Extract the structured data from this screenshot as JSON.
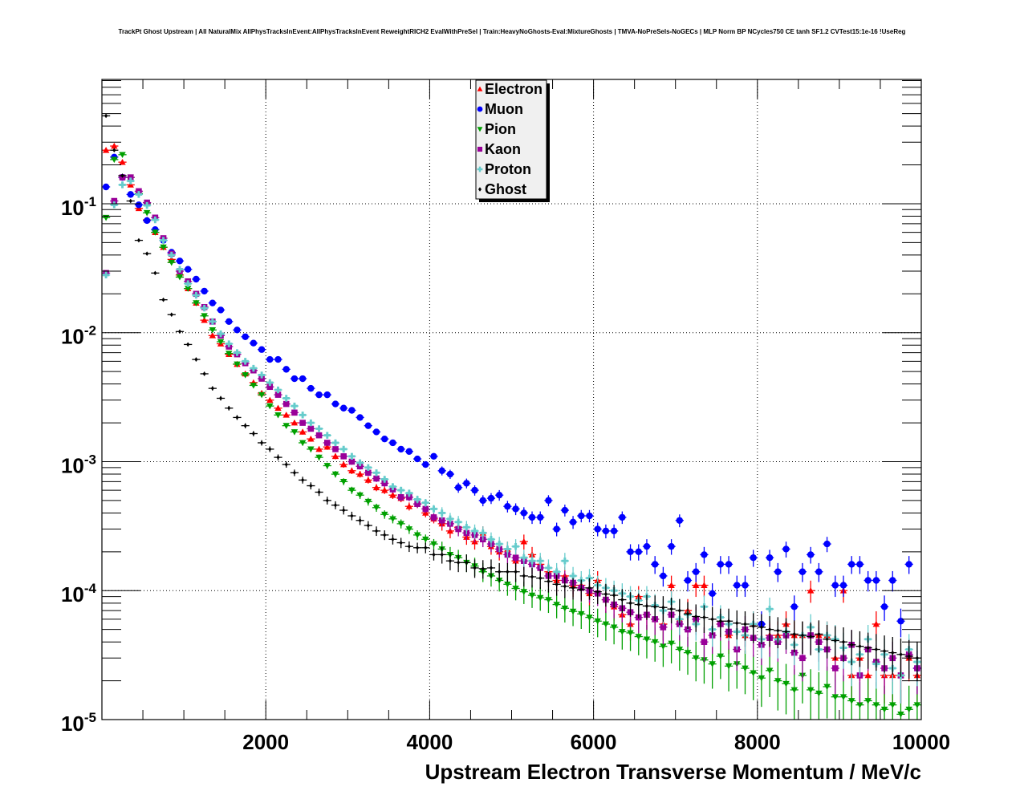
{
  "chart_data": {
    "type": "scatter",
    "title": "TrackPt Ghost Upstream | All NaturalMix AllPhysTracksInEvent:AllPhysTracksInEvent ReweightRICH2 EvalWithPreSel | Train:HeavyNoGhosts-Eval:MixtureGhosts | TMVA-NoPreSels-NoGECs | MLP Norm BP NCycles750 CE tanh SF1.2 CVTest15:1e-16 !UseReg",
    "xlabel": "Upstream Electron Transverse Momentum / MeV/c",
    "ylabel": "",
    "xlim": [
      0,
      10000
    ],
    "ylim": [
      1e-05,
      0.92
    ],
    "yscale": "log",
    "grid": true,
    "legend_position": "top-center",
    "x_ticks": [
      {
        "value": 2000,
        "label": "2000"
      },
      {
        "value": 4000,
        "label": "4000"
      },
      {
        "value": 6000,
        "label": "6000"
      },
      {
        "value": 8000,
        "label": "8000"
      },
      {
        "value": 10000,
        "label": "10000"
      }
    ],
    "y_ticks": [
      {
        "value": 0.1,
        "base": "10",
        "exp": "-1"
      },
      {
        "value": 0.01,
        "base": "10",
        "exp": "-2"
      },
      {
        "value": 0.001,
        "base": "10",
        "exp": "-3"
      },
      {
        "value": 0.0001,
        "base": "10",
        "exp": "-4"
      },
      {
        "value": 1e-05,
        "base": "10",
        "exp": "-5"
      }
    ],
    "bin_width": 100,
    "series": [
      {
        "name": "Electron",
        "color": "#ff0000",
        "marker": "triangle-up",
        "values": [
          0.26,
          0.28,
          0.21,
          0.14,
          0.092,
          0.075,
          0.06,
          0.046,
          0.037,
          0.028,
          0.022,
          0.017,
          0.0125,
          0.0095,
          0.0082,
          0.0068,
          0.0057,
          0.0048,
          0.0041,
          0.0034,
          0.003,
          0.0026,
          0.0023,
          0.002,
          0.0017,
          0.0015,
          0.00125,
          0.0013,
          0.0011,
          0.00095,
          0.00085,
          0.0008,
          0.00072,
          0.00063,
          0.0006,
          0.00055,
          0.00052,
          0.00045,
          0.00047,
          0.0004,
          0.00036,
          0.00033,
          0.00029,
          0.00031,
          0.00026,
          0.00024,
          0.00028,
          0.00022,
          0.0002,
          0.00021,
          0.00017,
          0.00024,
          0.00019,
          0.00016,
          0.00014,
          0.00012,
          0.00013,
          0.00011,
          0.00011,
          9.5e-05,
          0.00012,
          8.5e-05,
          7.5e-05,
          6.5e-05,
          5.5e-05,
          9e-05,
          6.5e-05,
          6e-05,
          5.5e-05,
          0.00011,
          6e-05,
          7e-05,
          0.00011,
          0.00011,
          9e-06,
          5.5e-05,
          4.5e-05,
          8e-06,
          4.5e-05,
          5.5e-05,
          9e-06,
          4.5e-05,
          4.5e-05,
          5.5e-05,
          4.5e-05,
          4.5e-05,
          0.0001,
          4.5e-05,
          4.5e-05,
          3e-05,
          0.0001,
          2.2e-05,
          3e-05,
          2.2e-05,
          5.5e-05,
          2.2e-05,
          2.2e-05,
          2.2e-05,
          3e-05,
          2.2e-05
        ]
      },
      {
        "name": "Muon",
        "color": "#0000ff",
        "marker": "circle",
        "values": [
          0.135,
          0.23,
          0.16,
          0.118,
          0.098,
          0.074,
          0.063,
          0.052,
          0.042,
          0.036,
          0.031,
          0.026,
          0.021,
          0.017,
          0.015,
          0.0122,
          0.0105,
          0.0093,
          0.0083,
          0.0074,
          0.0062,
          0.0062,
          0.0052,
          0.0044,
          0.0044,
          0.0037,
          0.0033,
          0.0033,
          0.0028,
          0.0026,
          0.0025,
          0.0022,
          0.0019,
          0.0017,
          0.0015,
          0.0014,
          0.00125,
          0.0012,
          0.00105,
          0.00095,
          0.0011,
          0.00085,
          0.0008,
          0.00063,
          0.00068,
          0.0006,
          0.0005,
          0.00052,
          0.00055,
          0.00045,
          0.00043,
          0.0004,
          0.00037,
          0.00037,
          0.0005,
          0.0003,
          0.00042,
          0.00034,
          0.00038,
          0.00038,
          0.0003,
          0.00029,
          0.00029,
          0.00037,
          0.0002,
          0.0002,
          0.00022,
          0.00016,
          0.00013,
          0.00022,
          0.00035,
          0.00012,
          0.00014,
          0.00019,
          9.5e-05,
          0.00016,
          0.00016,
          0.00011,
          0.00011,
          0.00018,
          5.5e-05,
          0.00018,
          0.00014,
          0.00021,
          7.5e-05,
          0.00014,
          0.00019,
          0.00014,
          0.00023,
          0.00011,
          0.00011,
          0.00016,
          0.00016,
          0.00012,
          0.00012,
          7.5e-05,
          0.00012,
          5.8e-05,
          0.00016,
          2.5e-05
        ]
      },
      {
        "name": "Pion",
        "color": "#00a000",
        "marker": "triangle-down",
        "values": [
          0.078,
          0.22,
          0.24,
          0.16,
          0.12,
          0.085,
          0.06,
          0.046,
          0.035,
          0.027,
          0.022,
          0.017,
          0.0135,
          0.0105,
          0.0085,
          0.0069,
          0.0057,
          0.0047,
          0.0039,
          0.0033,
          0.0027,
          0.0023,
          0.0019,
          0.0017,
          0.0014,
          0.00125,
          0.00108,
          0.00093,
          0.0008,
          0.0007,
          0.0006,
          0.00055,
          0.00049,
          0.00044,
          0.00039,
          0.00036,
          0.00033,
          0.0003,
          0.00027,
          0.00025,
          0.00023,
          0.00021,
          0.00019,
          0.00018,
          0.000165,
          0.000155,
          0.00014,
          0.00013,
          0.00012,
          0.000112,
          0.000104,
          9.8e-05,
          9.2e-05,
          8.8e-05,
          8.5e-05,
          7.8e-05,
          7.3e-05,
          6.9e-05,
          6.6e-05,
          6.2e-05,
          5.8e-05,
          5.5e-05,
          5.2e-05,
          4.8e-05,
          4.7e-05,
          4.4e-05,
          4.2e-05,
          4e-05,
          3.7e-05,
          3.9e-05,
          3.5e-05,
          3.3e-05,
          3e-05,
          2.9e-05,
          2.7e-05,
          3.1e-05,
          2.6e-05,
          2.7e-05,
          2.5e-05,
          2.3e-05,
          2.1e-05,
          2.4e-05,
          2e-05,
          1.9e-05,
          1.7e-05,
          2.2e-05,
          1.7e-05,
          1.6e-05,
          1.8e-05,
          1.5e-05,
          1.5e-05,
          1.4e-05,
          1.3e-05,
          1.4e-05,
          1.3e-05,
          1.2e-05,
          1.3e-05,
          1.1e-05,
          1.2e-05,
          1.3e-05
        ]
      },
      {
        "name": "Kaon",
        "color": "#990099",
        "marker": "square",
        "values": [
          0.029,
          0.105,
          0.16,
          0.16,
          0.125,
          0.102,
          0.078,
          0.054,
          0.041,
          0.03,
          0.025,
          0.02,
          0.0158,
          0.0122,
          0.0095,
          0.0078,
          0.0068,
          0.0058,
          0.0051,
          0.0044,
          0.0038,
          0.0033,
          0.0028,
          0.0024,
          0.002,
          0.0018,
          0.0016,
          0.0014,
          0.00125,
          0.0011,
          0.001,
          0.00092,
          0.00082,
          0.00074,
          0.00068,
          0.00061,
          0.00053,
          0.00053,
          0.00047,
          0.00043,
          0.00037,
          0.00035,
          0.00033,
          0.0003,
          0.00028,
          0.00027,
          0.00025,
          0.00023,
          0.00021,
          0.00019,
          0.00018,
          0.00017,
          0.00016,
          0.00015,
          0.00013,
          0.00013,
          0.00012,
          0.000115,
          0.000105,
          0.0001,
          9.5e-05,
          8.5e-05,
          7.8e-05,
          7.3e-05,
          6.8e-05,
          6.2e-05,
          6.5e-05,
          6e-05,
          5.2e-05,
          6.5e-05,
          5.5e-05,
          5e-05,
          6e-05,
          4e-05,
          4.5e-05,
          5.5e-05,
          4.8e-05,
          3.5e-05,
          5e-05,
          4.3e-05,
          3.8e-05,
          4.3e-05,
          4e-05,
          4.5e-05,
          3.3e-05,
          3e-05,
          4.5e-05,
          4e-05,
          3.5e-05,
          2.5e-05,
          3e-05,
          3.8e-05,
          2.2e-05,
          3.5e-05,
          2.8e-05,
          2.5e-05,
          3e-05,
          2.2e-05,
          3.2e-05,
          2.5e-05
        ]
      },
      {
        "name": "Proton",
        "color": "#66cccc",
        "marker": "cross",
        "values": [
          0.028,
          0.098,
          0.14,
          0.15,
          0.118,
          0.097,
          0.075,
          0.052,
          0.04,
          0.031,
          0.024,
          0.0195,
          0.0155,
          0.0122,
          0.0098,
          0.0082,
          0.007,
          0.006,
          0.0053,
          0.0047,
          0.0041,
          0.0036,
          0.0031,
          0.0027,
          0.0023,
          0.002,
          0.0018,
          0.0016,
          0.0014,
          0.00125,
          0.0011,
          0.00098,
          0.0009,
          0.00082,
          0.00073,
          0.00064,
          0.0006,
          0.00057,
          0.00051,
          0.00048,
          0.00043,
          0.0004,
          0.00036,
          0.00034,
          0.00031,
          0.00029,
          0.00028,
          0.00025,
          0.00023,
          0.00021,
          0.00022,
          0.00018,
          0.00017,
          0.00017,
          0.00015,
          0.00014,
          0.00017,
          0.00013,
          0.00012,
          0.000125,
          0.00011,
          0.000105,
          0.0001,
          9.5e-05,
          9e-05,
          8.4e-05,
          9e-05,
          7.7e-05,
          7e-05,
          8.2e-05,
          6e-05,
          6.5e-05,
          5.5e-05,
          7.5e-05,
          5e-05,
          6.2e-05,
          5.5e-05,
          4.8e-05,
          4.5e-05,
          5.5e-05,
          4.2e-05,
          7.2e-05,
          4.2e-05,
          4.8e-05,
          3.8e-05,
          4.5e-05,
          5.2e-05,
          3.5e-05,
          4.5e-05,
          4.2e-05,
          3.6e-05,
          2.8e-05,
          3.2e-05,
          4.2e-05,
          2.7e-05,
          3.2e-05,
          2.5e-05,
          2.2e-05,
          3.5e-05,
          2.8e-05
        ]
      },
      {
        "name": "Ghost",
        "color": "#000000",
        "marker": "diamond",
        "values": [
          0.48,
          0.26,
          0.165,
          0.105,
          0.052,
          0.041,
          0.029,
          0.018,
          0.0138,
          0.0102,
          0.0081,
          0.0062,
          0.0048,
          0.0037,
          0.0031,
          0.0026,
          0.0022,
          0.0019,
          0.00165,
          0.0014,
          0.00125,
          0.00108,
          0.00095,
          0.00082,
          0.00072,
          0.00065,
          0.00058,
          0.0005,
          0.00046,
          0.00042,
          0.00038,
          0.00035,
          0.00032,
          0.00029,
          0.00027,
          0.00025,
          0.000235,
          0.00022,
          0.000215,
          0.000215,
          0.00019,
          0.00019,
          0.00017,
          0.000165,
          0.000165,
          0.00015,
          0.000148,
          0.00015,
          0.00014,
          0.00014,
          0.00014,
          0.00013,
          0.000128,
          0.000125,
          0.000118,
          0.000112,
          0.000108,
          0.000105,
          0.000102,
          0.000105,
          9.8e-05,
          9.4e-05,
          9.2e-05,
          8.5e-05,
          8e-05,
          7.8e-05,
          7.6e-05,
          7.5e-05,
          7.4e-05,
          7.2e-05,
          7e-05,
          6.6e-05,
          6.3e-05,
          6.2e-05,
          6e-05,
          5.8e-05,
          5.8e-05,
          5.6e-05,
          5.5e-05,
          5.3e-05,
          5.2e-05,
          5e-05,
          4.9e-05,
          4.8e-05,
          4.6e-05,
          4.5e-05,
          4.4e-05,
          4.6e-05,
          4.2e-05,
          4.1e-05,
          4e-05,
          3.8e-05,
          3.7e-05,
          3.6e-05,
          3.5e-05,
          3.4e-05,
          3.3e-05,
          3.2e-05,
          3.1e-05,
          3e-05
        ]
      }
    ]
  }
}
